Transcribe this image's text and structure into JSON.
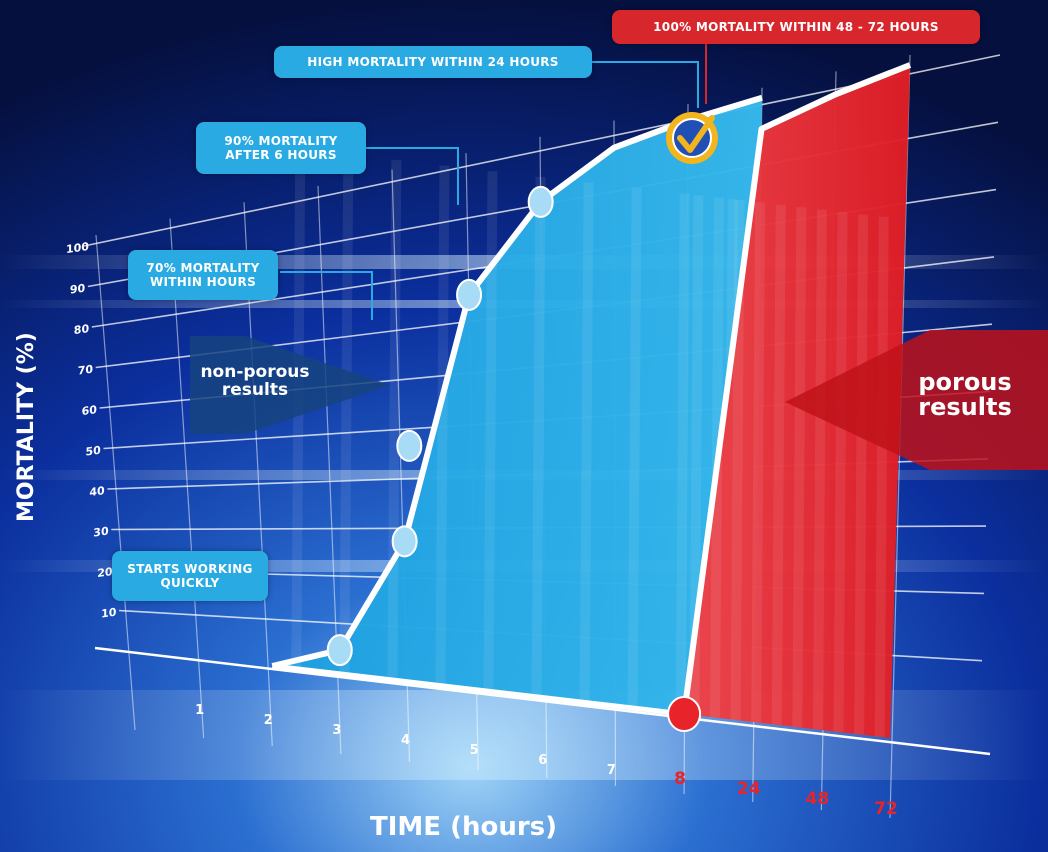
{
  "chart_data": {
    "type": "area",
    "title": "",
    "xlabel": "TIME (hours)",
    "ylabel": "MORTALITY (%)",
    "ylim": [
      0,
      100
    ],
    "y_ticks": [
      "10",
      "20",
      "30",
      "40",
      "50",
      "60",
      "70",
      "80",
      "90",
      "100"
    ],
    "x_ticks": [
      "1",
      "2",
      "3",
      "4",
      "5",
      "6",
      "7",
      "8",
      "24",
      "48",
      "72"
    ],
    "series": [
      {
        "name": "non-porous results",
        "color": "#29aae2",
        "x": [
          "2",
          "3",
          "4",
          "5",
          "6",
          "7",
          "8",
          "24"
        ],
        "values": [
          0,
          5,
          28,
          75,
          90,
          97,
          99,
          100
        ]
      },
      {
        "name": "porous results",
        "color": "#e8232a",
        "x": [
          "8",
          "24",
          "48",
          "72"
        ],
        "values": [
          0,
          95,
          98,
          100
        ]
      }
    ],
    "markers": [
      {
        "x": "3",
        "y": 5
      },
      {
        "x": "4",
        "y": 28
      },
      {
        "x": "4",
        "y": 47
      },
      {
        "x": "5",
        "y": 75
      },
      {
        "x": "6",
        "y": 90
      },
      {
        "x": "8",
        "y": 0
      }
    ],
    "legend_position": "in-plot"
  },
  "labels": {
    "nonporous": "non-porous results",
    "porous": "porous results"
  },
  "callouts": {
    "starts": [
      "STARTS WORKING",
      "QUICKLY"
    ],
    "seventy": [
      "70% MORTALITY",
      "WITHIN HOURS"
    ],
    "ninety": [
      "90% MORTALITY",
      "AFTER 6 HOURS"
    ],
    "high": "HIGH MORTALITY WITHIN 24 HOURS",
    "hundred": "100% MORTALITY WITHIN 48 - 72 HOURS"
  },
  "colors": {
    "background": "#0a1f6e",
    "blue": "#29aae2",
    "red": "#e8232a",
    "badge": "#f2b51d"
  }
}
